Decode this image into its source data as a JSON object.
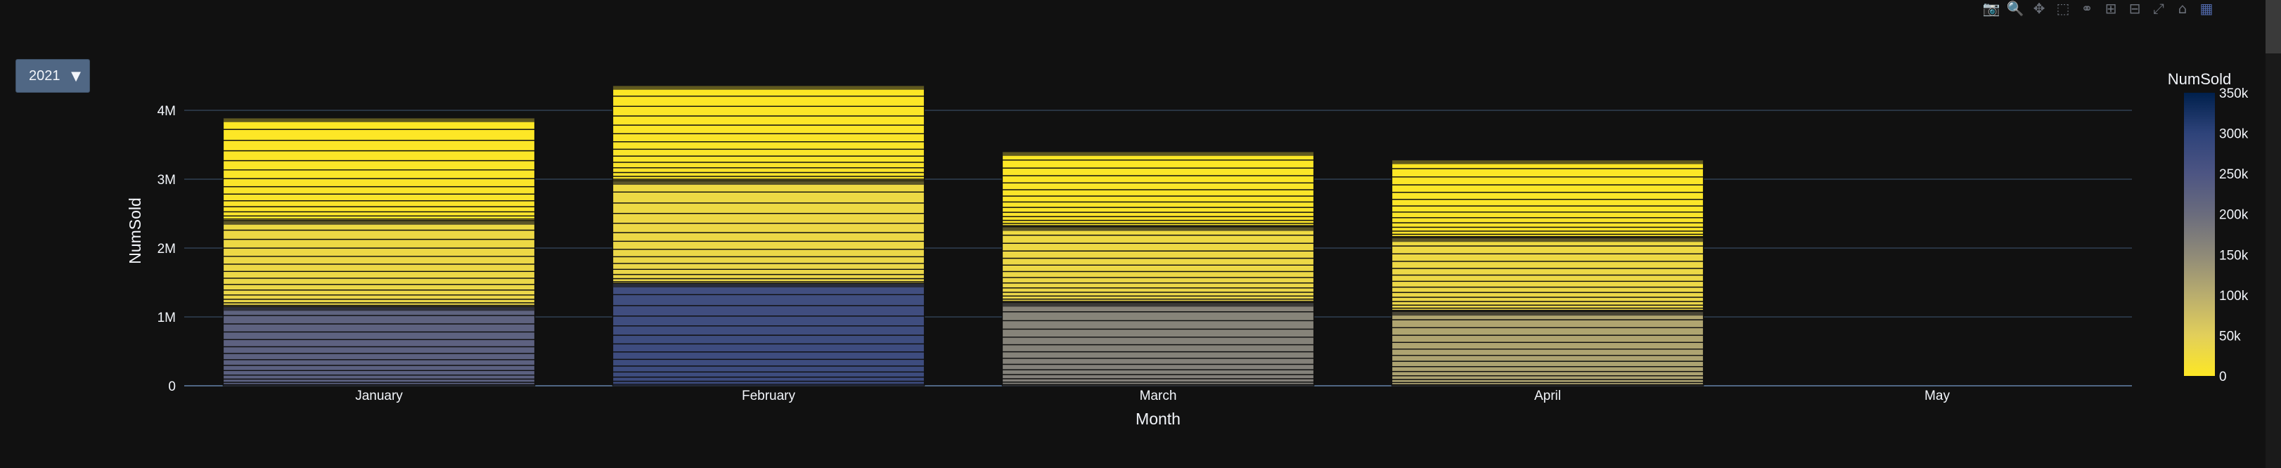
{
  "modebar": {
    "icons": [
      "camera-icon",
      "zoom-icon",
      "pan-icon",
      "box-select-icon",
      "lasso-icon",
      "zoom-in-icon",
      "zoom-out-icon",
      "autoscale-icon",
      "home-icon",
      "plotly-logo-icon"
    ]
  },
  "dropdown": {
    "selected": "2021"
  },
  "chart_data": {
    "type": "bar",
    "barmode": "stack",
    "categories": [
      "January",
      "February",
      "March",
      "April",
      "May"
    ],
    "xlabel": "Month",
    "ylabel": "NumSold",
    "ylim": [
      0,
      4500000
    ],
    "yticks": [
      0,
      1000000,
      2000000,
      3000000,
      4000000
    ],
    "ytick_labels": [
      "0",
      "1M",
      "2M",
      "3M",
      "4M"
    ],
    "grid": true,
    "colorbar": {
      "title": "NumSold",
      "range": [
        0,
        350000
      ],
      "ticks": [
        0,
        50000,
        100000,
        150000,
        200000,
        250000,
        300000,
        350000
      ],
      "tick_labels": [
        "0",
        "50k",
        "100k",
        "150k",
        "200k",
        "250k",
        "300k",
        "350k"
      ],
      "colors": [
        "#fde725",
        "#e2cf5a",
        "#b9ad6e",
        "#8f8a78",
        "#6a6c7d",
        "#4d5583",
        "#2e437a",
        "#00204c"
      ]
    },
    "totals": [
      3890000,
      4360000,
      3400000,
      3280000,
      0
    ],
    "group_segments": [
      [
        1150000,
        1250000,
        1490000
      ],
      [
        1490000,
        1490000,
        1380000
      ],
      [
        1210000,
        1100000,
        1090000
      ],
      [
        1080000,
        1070000,
        1130000
      ],
      [
        0,
        0,
        0
      ]
    ],
    "bottom_group_value": [
      220000,
      270000,
      160000,
      110000,
      0
    ]
  },
  "colors": {
    "background": "#111111",
    "grid": "#283442",
    "text": "#f2f5fa"
  }
}
